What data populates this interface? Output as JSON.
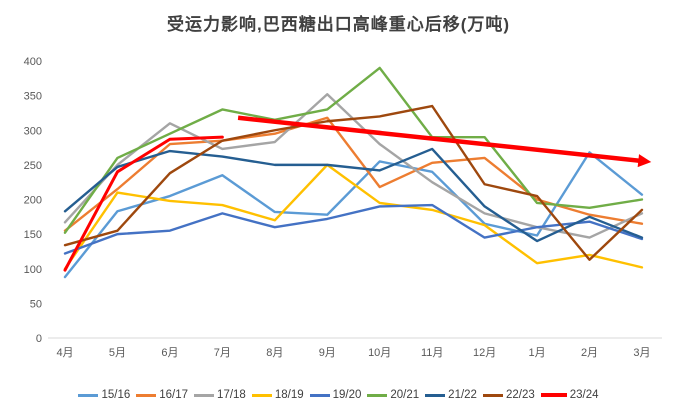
{
  "title": "受运力影响,巴西糖出口高峰重心后移(万吨)",
  "axis": {
    "y_ticks": [
      0,
      50,
      100,
      150,
      200,
      250,
      300,
      350,
      400
    ],
    "tick_color": "#595959",
    "axis_line_color": "#d9d9d9"
  },
  "chart_data": {
    "type": "line",
    "title": "受运力影响,巴西糖出口高峰重心后移(万吨)",
    "xlabel": "",
    "ylabel": "",
    "ylim": [
      0,
      400
    ],
    "ytick_step": 50,
    "grid": false,
    "legend_position": "bottom",
    "categories": [
      "4月",
      "5月",
      "6月",
      "7月",
      "8月",
      "9月",
      "10月",
      "11月",
      "12月",
      "1月",
      "2月",
      "3月"
    ],
    "series": [
      {
        "name": "15/16",
        "color": "#5B9BD5",
        "values": [
          88,
          183,
          205,
          235,
          182,
          178,
          255,
          240,
          165,
          148,
          268,
          207
        ]
      },
      {
        "name": "16/17",
        "color": "#ED7D31",
        "values": [
          155,
          215,
          280,
          285,
          295,
          318,
          218,
          253,
          260,
          200,
          178,
          165
        ]
      },
      {
        "name": "17/18",
        "color": "#A5A5A5",
        "values": [
          167,
          250,
          310,
          273,
          283,
          352,
          280,
          225,
          180,
          160,
          145,
          180
        ]
      },
      {
        "name": "18/19",
        "color": "#FFC000",
        "values": [
          100,
          210,
          198,
          192,
          170,
          250,
          195,
          185,
          163,
          108,
          120,
          102
        ]
      },
      {
        "name": "19/20",
        "color": "#4472C4",
        "values": [
          122,
          150,
          155,
          180,
          160,
          172,
          190,
          192,
          145,
          160,
          168,
          143
        ]
      },
      {
        "name": "20/21",
        "color": "#70AD47",
        "values": [
          152,
          260,
          295,
          330,
          315,
          330,
          390,
          290,
          290,
          195,
          188,
          200
        ]
      },
      {
        "name": "21/22",
        "color": "#255E91",
        "values": [
          183,
          247,
          270,
          262,
          250,
          250,
          242,
          273,
          190,
          140,
          175,
          145
        ]
      },
      {
        "name": "22/23",
        "color": "#9E480E",
        "values": [
          134,
          155,
          238,
          285,
          300,
          313,
          320,
          335,
          222,
          205,
          113,
          185
        ]
      },
      {
        "name": "23/24",
        "color": "#FF0000",
        "values": [
          98,
          240,
          287,
          290,
          null,
          null,
          null,
          null,
          null,
          null,
          null,
          null
        ]
      }
    ],
    "annotation_arrow": {
      "color": "#FF0000",
      "from": {
        "x_index": 3.3,
        "value": 318
      },
      "to": {
        "x_index": 10.95,
        "value": 256
      },
      "meaning": "peak shifting later in season"
    }
  }
}
